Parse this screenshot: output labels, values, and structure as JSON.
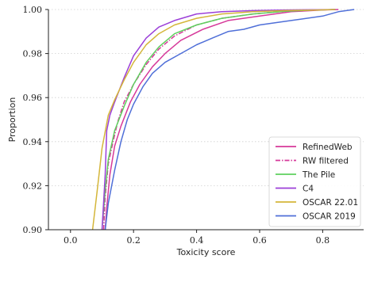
{
  "chart_data": {
    "type": "line",
    "xlabel": "Toxicity score",
    "ylabel": "Proportion",
    "xlim": [
      -0.07,
      0.93
    ],
    "ylim": [
      0.9,
      1.0
    ],
    "xticks": [
      0.0,
      0.2,
      0.4,
      0.6,
      0.8
    ],
    "yticks": [
      0.9,
      0.92,
      0.94,
      0.96,
      0.98,
      1.0
    ],
    "xtick_labels": [
      "0.0",
      "0.2",
      "0.4",
      "0.6",
      "0.8"
    ],
    "ytick_labels": [
      "0.90",
      "0.92",
      "0.94",
      "0.96",
      "0.98",
      "1.00"
    ],
    "grid": "horizontal dotted",
    "legend_position": "bottom-right",
    "series": [
      {
        "name": "RefinedWeb",
        "color": "#d6399a",
        "dash": "solid",
        "x": [
          0.11,
          0.115,
          0.125,
          0.14,
          0.16,
          0.19,
          0.22,
          0.26,
          0.3,
          0.35,
          0.42,
          0.5,
          0.6,
          0.7,
          0.8,
          0.85
        ],
        "y": [
          0.9,
          0.91,
          0.925,
          0.938,
          0.947,
          0.958,
          0.966,
          0.974,
          0.98,
          0.986,
          0.991,
          0.995,
          0.997,
          0.999,
          0.9998,
          1.0
        ]
      },
      {
        "name": "RW filtered",
        "color": "#d6399a",
        "dash": "dashdot",
        "x": [
          0.105,
          0.11,
          0.12,
          0.135,
          0.15,
          0.17,
          0.2,
          0.24,
          0.28,
          0.33,
          0.4,
          0.48,
          0.58,
          0.68,
          0.78,
          0.84
        ],
        "y": [
          0.9,
          0.915,
          0.93,
          0.94,
          0.949,
          0.958,
          0.966,
          0.975,
          0.982,
          0.988,
          0.993,
          0.996,
          0.998,
          0.9992,
          0.9998,
          1.0
        ]
      },
      {
        "name": "The Pile",
        "color": "#5ed05e",
        "dash": "solid",
        "x": [
          0.1,
          0.11,
          0.12,
          0.14,
          0.17,
          0.2,
          0.24,
          0.28,
          0.33,
          0.4,
          0.48,
          0.58,
          0.68,
          0.78,
          0.84
        ],
        "y": [
          0.9,
          0.918,
          0.932,
          0.945,
          0.956,
          0.966,
          0.976,
          0.983,
          0.989,
          0.993,
          0.996,
          0.998,
          0.9992,
          0.9998,
          1.0
        ]
      },
      {
        "name": "C4",
        "color": "#9b3fd8",
        "dash": "solid",
        "x": [
          0.1,
          0.11,
          0.115,
          0.125,
          0.14,
          0.17,
          0.2,
          0.24,
          0.28,
          0.33,
          0.4,
          0.48,
          0.58,
          0.68,
          0.78,
          0.84
        ],
        "y": [
          0.9,
          0.925,
          0.945,
          0.952,
          0.958,
          0.969,
          0.979,
          0.987,
          0.992,
          0.995,
          0.998,
          0.999,
          0.9995,
          0.9998,
          0.9999,
          1.0
        ]
      },
      {
        "name": "OSCAR 22.01",
        "color": "#d4b63a",
        "dash": "solid",
        "x": [
          0.07,
          0.085,
          0.1,
          0.12,
          0.14,
          0.17,
          0.2,
          0.24,
          0.28,
          0.33,
          0.4,
          0.48,
          0.58,
          0.68,
          0.78,
          0.84
        ],
        "y": [
          0.9,
          0.918,
          0.937,
          0.952,
          0.959,
          0.968,
          0.976,
          0.984,
          0.989,
          0.993,
          0.996,
          0.998,
          0.999,
          0.9995,
          0.9998,
          1.0
        ]
      },
      {
        "name": "OSCAR 2019",
        "color": "#4f6fd8",
        "dash": "solid",
        "x": [
          0.11,
          0.12,
          0.14,
          0.16,
          0.18,
          0.2,
          0.23,
          0.26,
          0.3,
          0.35,
          0.4,
          0.45,
          0.5,
          0.55,
          0.6,
          0.7,
          0.8,
          0.85,
          0.9
        ],
        "y": [
          0.9,
          0.912,
          0.927,
          0.94,
          0.95,
          0.957,
          0.965,
          0.971,
          0.976,
          0.98,
          0.984,
          0.987,
          0.99,
          0.991,
          0.993,
          0.995,
          0.997,
          0.999,
          1.0
        ]
      }
    ]
  }
}
